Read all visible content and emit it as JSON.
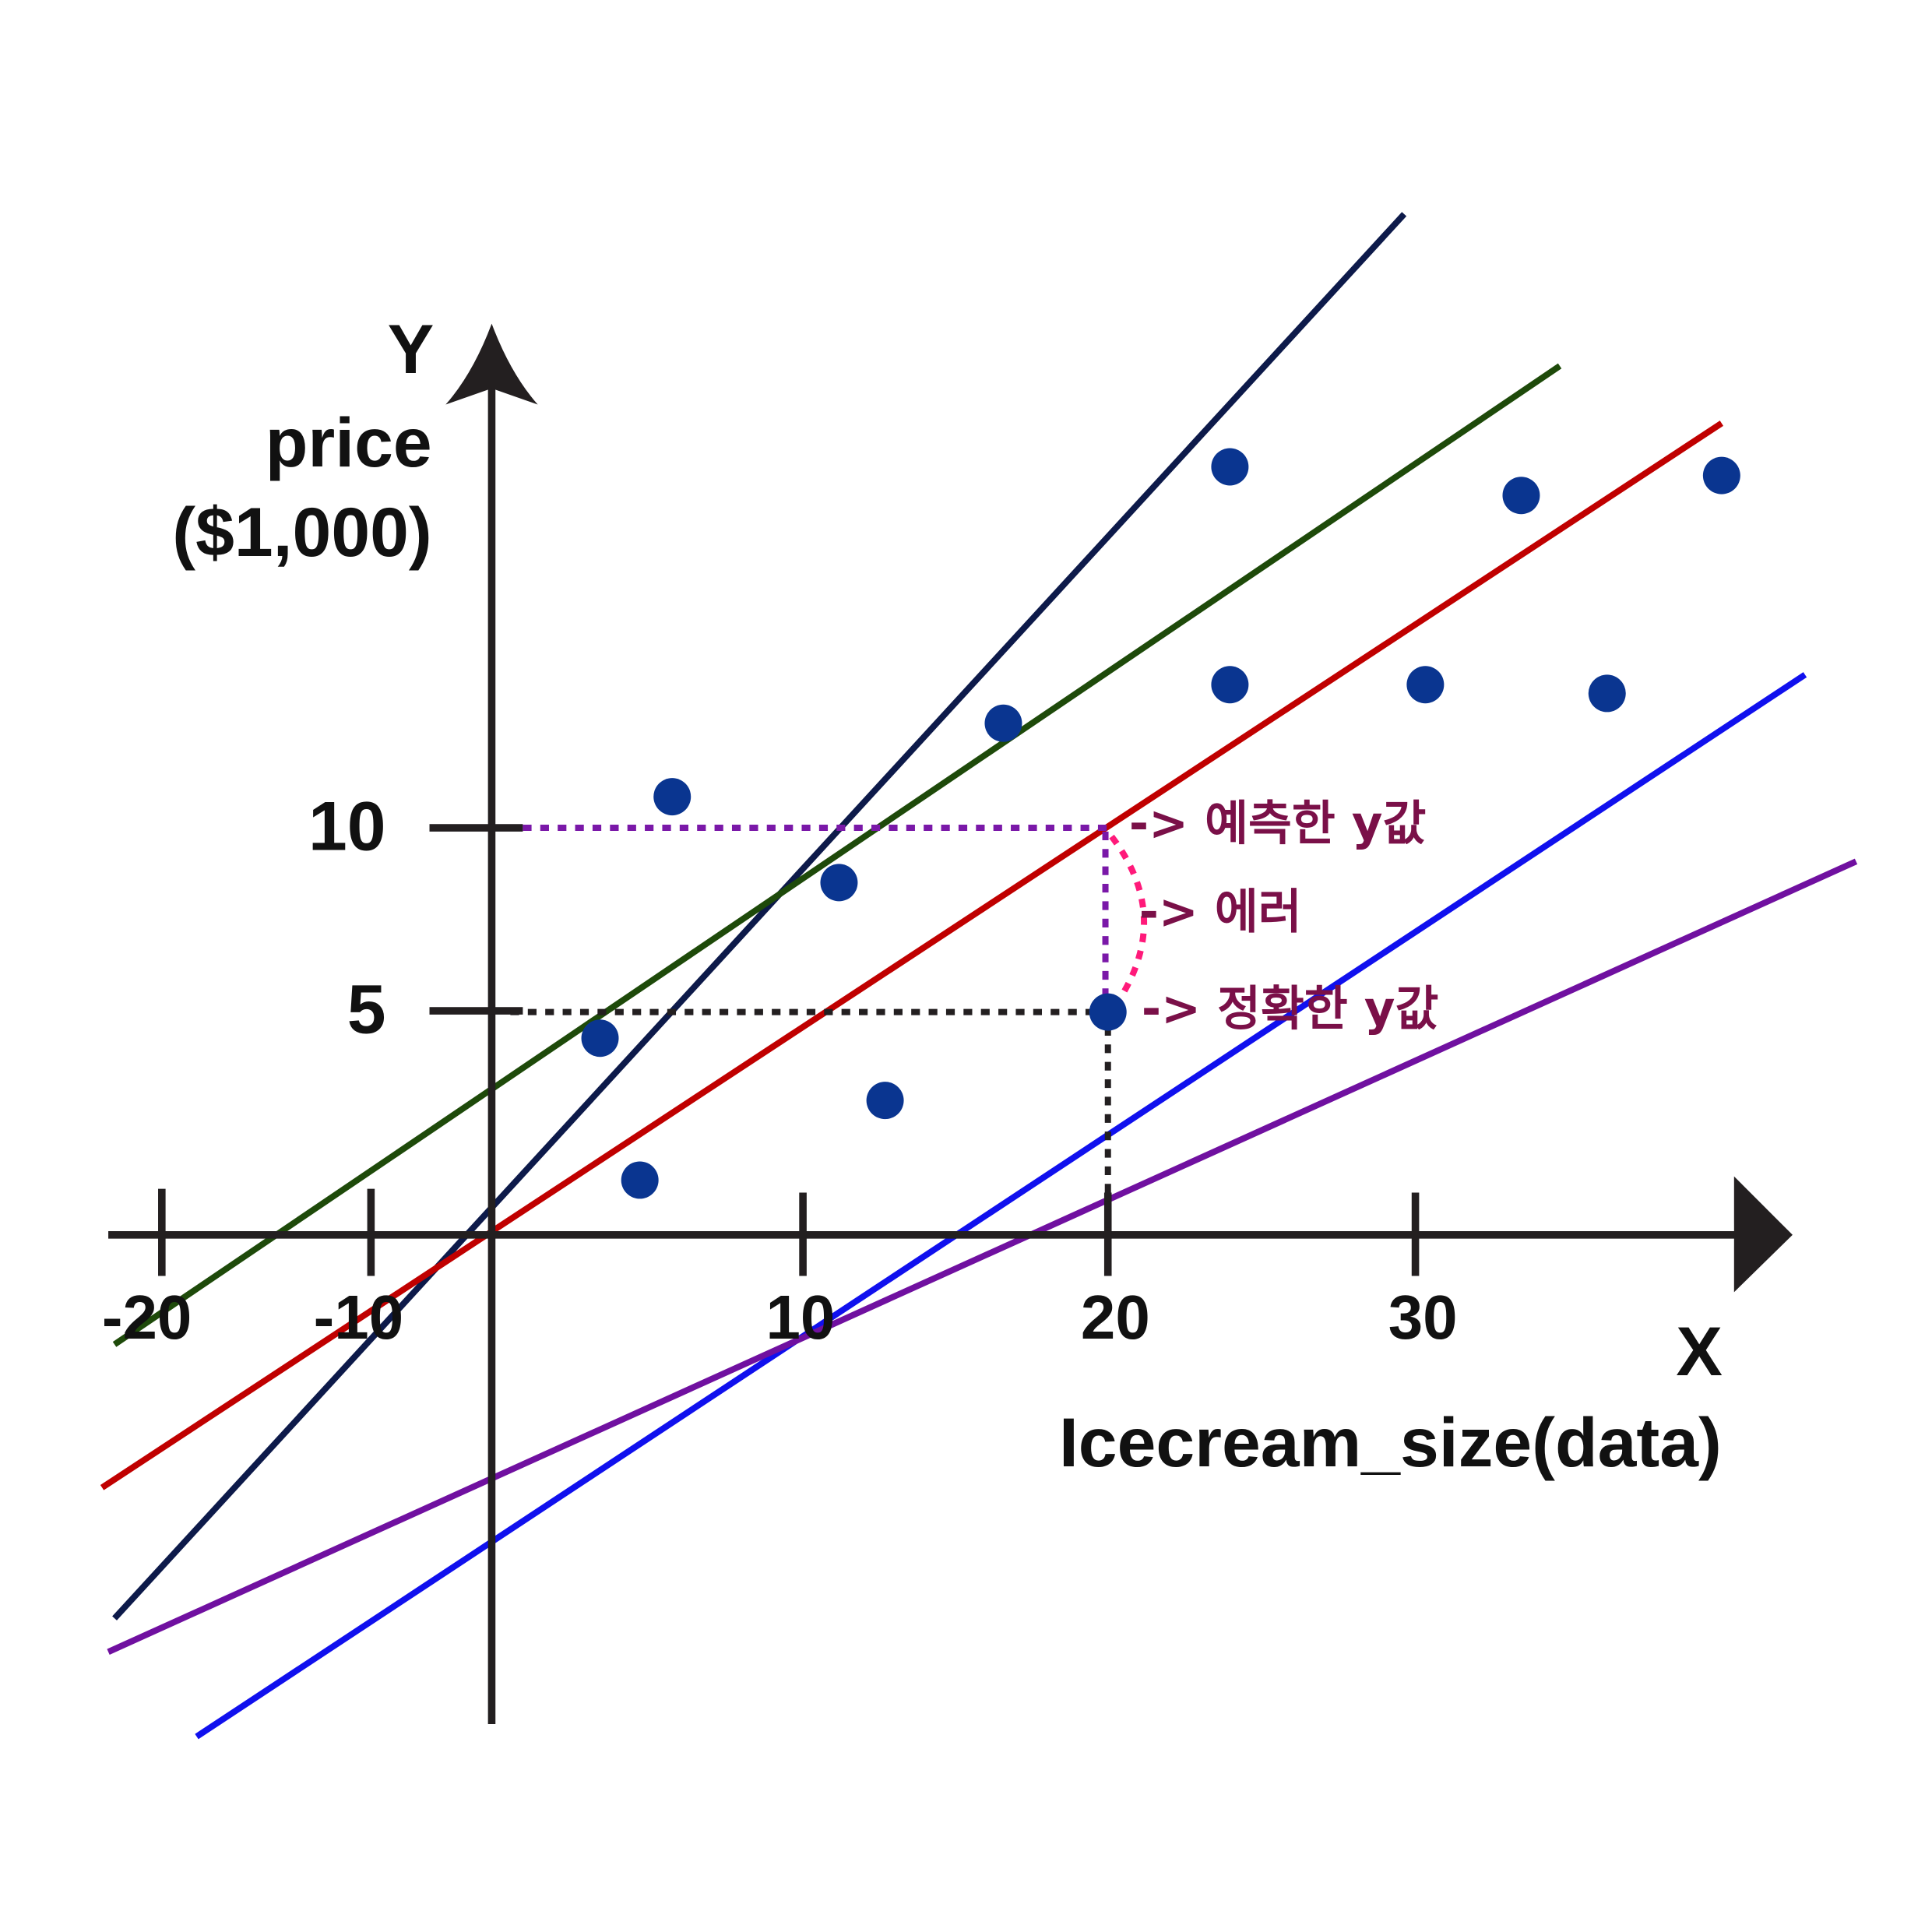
{
  "axes": {
    "y_label": "Y",
    "y_title": [
      "price",
      "($1,000)"
    ],
    "x_label": "X",
    "x_title": "Icecream_size(data)",
    "x_ticks": [
      "-20",
      "-10",
      "10",
      "20",
      "30"
    ],
    "y_ticks": [
      "10",
      "5"
    ]
  },
  "annotations": [
    "-> 예측한 y값",
    "-> 에러",
    "-> 정확한 y값"
  ]
}
